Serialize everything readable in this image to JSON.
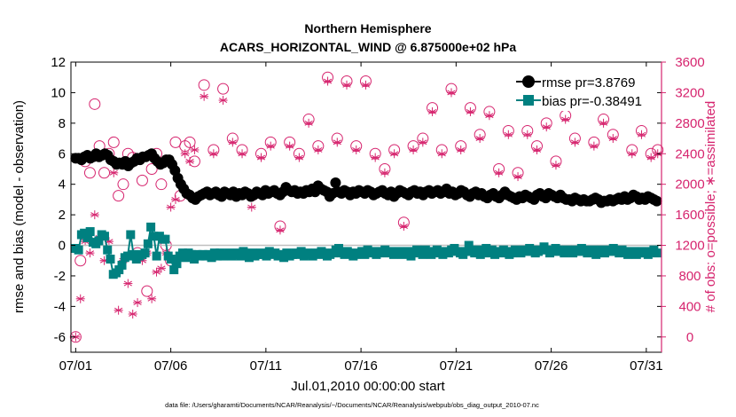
{
  "chart_data": {
    "type": "line",
    "title": "Northern Hemisphere",
    "subtitle": "ACARS_HORIZONTAL_WIND @ 6.875000e+02 hPa",
    "xlabel": "Jul.01,2010 00:00:00 start",
    "ylabel_left": "rmse and bias (model - observation)",
    "ylabel_right": "# of obs: o=possible; ∗=assimilated",
    "footnote": "data file: /Users/gharamti/Documents/NCAR/Reanalysis/~/Documents/NCAR/Reanalysis/webpub/obs_diag_output_2010-07.nc",
    "x_ticks": [
      "07/01",
      "07/06",
      "07/11",
      "07/16",
      "07/21",
      "07/26",
      "07/31"
    ],
    "x_tick_days": [
      0,
      5,
      10,
      15,
      20,
      25,
      30
    ],
    "xlim": [
      -0.25,
      30.8
    ],
    "left_ylim": [
      -7,
      12
    ],
    "left_ticks": [
      -6,
      -4,
      -2,
      0,
      2,
      4,
      6,
      8,
      10,
      12
    ],
    "right_ylim": [
      -200,
      3600
    ],
    "right_ticks": [
      0,
      400,
      800,
      1200,
      1600,
      2000,
      2400,
      2800,
      3200,
      3600
    ],
    "grid": false,
    "legend": {
      "placement": "top-right",
      "entries": [
        "rmse pr=3.8769",
        "bias pr=-0.38491"
      ]
    },
    "colors": {
      "rmse": "#000000",
      "bias": "#008080",
      "obs": "#d6246e",
      "zero_line": "#bfbfbf",
      "axis_right": "#d6246e"
    },
    "rmse": [
      5.7,
      5.7,
      5.6,
      5.8,
      5.9,
      5.7,
      5.8,
      6.0,
      5.8,
      5.9,
      6.0,
      5.9,
      5.6,
      5.5,
      5.3,
      5.4,
      5.3,
      5.5,
      5.2,
      5.4,
      5.5,
      5.7,
      5.6,
      5.8,
      5.8,
      5.9,
      6.0,
      5.7,
      5.5,
      5.3,
      5.4,
      5.6,
      5.6,
      5.3,
      4.9,
      4.4,
      4.0,
      3.7,
      3.4,
      3.3,
      3.1,
      3.0,
      3.2,
      3.3,
      3.4,
      3.5,
      3.3,
      3.4,
      3.5,
      3.3,
      3.2,
      3.5,
      3.4,
      3.3,
      3.5,
      3.2,
      3.4,
      3.3,
      3.5,
      3.4,
      3.2,
      3.3,
      3.5,
      3.4,
      3.3,
      3.6,
      3.4,
      3.5,
      3.6,
      3.4,
      3.3,
      3.5,
      3.8,
      3.6,
      3.5,
      3.6,
      3.4,
      3.5,
      3.4,
      3.6,
      3.5,
      3.7,
      3.5,
      3.9,
      3.7,
      3.6,
      3.5,
      3.2,
      3.4,
      4.1,
      3.5,
      3.4,
      3.6,
      3.5,
      3.3,
      3.5,
      3.4,
      3.6,
      3.5,
      3.4,
      3.6,
      3.5,
      3.3,
      3.4,
      3.5,
      3.6,
      3.4,
      3.3,
      3.5,
      3.2,
      3.4,
      3.6,
      3.5,
      3.4,
      3.3,
      3.5,
      3.6,
      3.4,
      3.5,
      3.3,
      3.5,
      3.6,
      3.4,
      3.5,
      3.6,
      3.4,
      3.5,
      3.7,
      3.4,
      3.5,
      3.3,
      3.4,
      3.6,
      3.5,
      3.3,
      3.2,
      3.4,
      3.5,
      3.3,
      3.4,
      3.2,
      3.1,
      3.3,
      3.4,
      3.2,
      3.1,
      3.3,
      3.5,
      3.3,
      3.2,
      3.1,
      3.0,
      3.2,
      3.1,
      3.3,
      3.2,
      3.1,
      3.0,
      3.3,
      3.4,
      3.2,
      3.1,
      3.4,
      3.3,
      3.2,
      3.1,
      3.3,
      3.1,
      3.0,
      3.0,
      2.9,
      3.1,
      3.0,
      2.9,
      3.0,
      2.9,
      2.9,
      3.0,
      3.1,
      3.0,
      2.8,
      2.9,
      2.9,
      3.0,
      2.9,
      3.0,
      3.1,
      3.0,
      3.2,
      3.0,
      3.1,
      3.3,
      3.2,
      3.0,
      3.1,
      3.0,
      3.2,
      3.1,
      3.0,
      2.9
    ],
    "bias": [
      -0.2,
      -0.3,
      0.7,
      0.8,
      0.5,
      0.9,
      0.2,
      0.1,
      0.3,
      0.7,
      0.6,
      -0.3,
      -0.9,
      -1.9,
      -1.8,
      -1.6,
      -1.3,
      -0.8,
      -0.7,
      0.7,
      -0.6,
      -0.9,
      -0.7,
      -0.6,
      -0.5,
      0.1,
      1.2,
      0.6,
      -0.7,
      0.6,
      0.4,
      0.4,
      -0.7,
      -0.9,
      -1.6,
      -1.2,
      -0.7,
      -0.5,
      -0.8,
      -0.5,
      -0.6,
      -0.9,
      -0.6,
      -0.7,
      -0.6,
      -0.7,
      -0.6,
      -0.8,
      -0.5,
      -0.7,
      -0.5,
      -0.7,
      -0.6,
      -0.5,
      -0.7,
      -0.6,
      -0.5,
      -0.7,
      -0.4,
      -0.6,
      -0.8,
      -0.5,
      -0.7,
      -0.6,
      -0.5,
      -0.6,
      -0.7,
      -0.4,
      -0.6,
      -0.5,
      -0.7,
      -0.6,
      -0.8,
      -0.5,
      -0.7,
      -0.6,
      -0.5,
      -0.6,
      -0.4,
      -0.7,
      -0.5,
      -0.6,
      -0.7,
      -0.5,
      -0.6,
      -0.4,
      -0.5,
      -0.7,
      -0.6,
      -0.5,
      -0.3,
      -0.2,
      -0.5,
      -0.6,
      -0.4,
      -0.5,
      -0.7,
      -0.6,
      -0.5,
      -0.4,
      -0.6,
      -0.3,
      -0.5,
      -0.4,
      -0.6,
      -0.5,
      -0.4,
      -0.3,
      -0.5,
      -0.4,
      -0.6,
      -0.5,
      -0.4,
      -0.6,
      -0.5,
      -0.4,
      -0.7,
      -0.5,
      -0.3,
      -0.4,
      -0.6,
      -0.3,
      -0.5,
      -0.6,
      -0.4,
      -0.3,
      -0.5,
      -0.6,
      -0.4,
      -0.5,
      -0.3,
      -0.2,
      -0.4,
      -0.5,
      -0.6,
      -0.4,
      0.0,
      -0.4,
      -0.5,
      -0.3,
      -0.6,
      -0.4,
      -0.2,
      -0.5,
      -0.3,
      -0.6,
      -0.4,
      -0.5,
      -0.3,
      -0.4,
      -0.6,
      -0.5,
      -0.3,
      -0.4,
      -0.5,
      -0.3,
      -0.4,
      -0.2,
      -0.3,
      -0.5,
      -0.4,
      -0.3,
      -0.1,
      -0.3,
      -0.5,
      -0.4,
      -0.2,
      -0.3,
      -0.4,
      -0.5,
      -0.3,
      -0.4,
      -0.5,
      -0.3,
      -0.4,
      -0.2,
      -0.3,
      -0.5,
      -0.4,
      -0.3,
      -0.6,
      -0.4,
      -0.3,
      -0.5,
      -0.4,
      -0.3,
      -0.2,
      -0.4,
      -0.5,
      -0.3,
      -0.4,
      -0.6,
      -0.5,
      -0.4,
      -0.6,
      -0.5,
      -0.4,
      -0.5,
      -0.6,
      -0.4,
      -0.3,
      -0.5
    ],
    "obs": [
      {
        "day": 0.0,
        "possible": 0,
        "assimilated": 0
      },
      {
        "day": 0.25,
        "possible": 1000,
        "assimilated": 500
      },
      {
        "day": 0.5,
        "possible": 2300,
        "assimilated": 1250
      },
      {
        "day": 0.75,
        "possible": 2150,
        "assimilated": 1100
      },
      {
        "day": 1.0,
        "possible": 3050,
        "assimilated": 1600
      },
      {
        "day": 1.25,
        "possible": 2500,
        "assimilated": 1300
      },
      {
        "day": 1.5,
        "possible": 2150,
        "assimilated": 1000
      },
      {
        "day": 1.75,
        "possible": 2400,
        "assimilated": 1250
      },
      {
        "day": 2.0,
        "possible": 2550,
        "assimilated": 2150
      },
      {
        "day": 2.25,
        "possible": 1850,
        "assimilated": 350
      },
      {
        "day": 2.5,
        "possible": 2000,
        "assimilated": 1000
      },
      {
        "day": 2.75,
        "possible": 2400,
        "assimilated": 700
      },
      {
        "day": 3.0,
        "possible": 2350,
        "assimilated": 300
      },
      {
        "day": 3.25,
        "possible": 1100,
        "assimilated": 450
      },
      {
        "day": 3.5,
        "possible": 2050,
        "assimilated": 1000
      },
      {
        "day": 3.75,
        "possible": 600,
        "assimilated": 1100
      },
      {
        "day": 4.0,
        "possible": 2200,
        "assimilated": 500
      },
      {
        "day": 4.25,
        "possible": 2400,
        "assimilated": 850
      },
      {
        "day": 4.5,
        "possible": 2000,
        "assimilated": 900
      },
      {
        "day": 4.75,
        "possible": 1200,
        "assimilated": 1100
      },
      {
        "day": 5.0,
        "possible": 1000,
        "assimilated": 1700
      },
      {
        "day": 5.25,
        "possible": 2550,
        "assimilated": 1800
      },
      {
        "day": 5.5,
        "possible": 1850,
        "assimilated": 2000
      },
      {
        "day": 5.75,
        "possible": 2500,
        "assimilated": 2400
      },
      {
        "day": 6.0,
        "possible": 2550,
        "assimilated": 2300
      },
      {
        "day": 6.25,
        "possible": 2300,
        "assimilated": 2450
      },
      {
        "day": 6.75,
        "possible": 3300,
        "assimilated": 3150
      },
      {
        "day": 7.25,
        "possible": 2450,
        "assimilated": 2400
      },
      {
        "day": 7.75,
        "possible": 3250,
        "assimilated": 3100
      },
      {
        "day": 8.25,
        "possible": 2600,
        "assimilated": 2550
      },
      {
        "day": 8.75,
        "possible": 2450,
        "assimilated": 2400
      },
      {
        "day": 9.25,
        "possible": 1850,
        "assimilated": 1700
      },
      {
        "day": 9.75,
        "possible": 2400,
        "assimilated": 2350
      },
      {
        "day": 10.25,
        "possible": 2550,
        "assimilated": 2500
      },
      {
        "day": 10.75,
        "possible": 1450,
        "assimilated": 1400
      },
      {
        "day": 11.25,
        "possible": 2550,
        "assimilated": 2500
      },
      {
        "day": 11.75,
        "possible": 2400,
        "assimilated": 2350
      },
      {
        "day": 12.25,
        "possible": 2850,
        "assimilated": 2800
      },
      {
        "day": 12.75,
        "possible": 2500,
        "assimilated": 2450
      },
      {
        "day": 13.25,
        "possible": 3400,
        "assimilated": 3350
      },
      {
        "day": 13.75,
        "possible": 2600,
        "assimilated": 2550
      },
      {
        "day": 14.25,
        "possible": 3350,
        "assimilated": 3300
      },
      {
        "day": 14.75,
        "possible": 2500,
        "assimilated": 2450
      },
      {
        "day": 15.25,
        "possible": 3350,
        "assimilated": 3300
      },
      {
        "day": 15.75,
        "possible": 2400,
        "assimilated": 2350
      },
      {
        "day": 16.25,
        "possible": 2200,
        "assimilated": 2150
      },
      {
        "day": 16.75,
        "possible": 2450,
        "assimilated": 2400
      },
      {
        "day": 17.25,
        "possible": 1500,
        "assimilated": 1450
      },
      {
        "day": 17.75,
        "possible": 2500,
        "assimilated": 2450
      },
      {
        "day": 18.25,
        "possible": 2600,
        "assimilated": 2550
      },
      {
        "day": 18.75,
        "possible": 3000,
        "assimilated": 2950
      },
      {
        "day": 19.25,
        "possible": 2450,
        "assimilated": 2400
      },
      {
        "day": 19.75,
        "possible": 3250,
        "assimilated": 3200
      },
      {
        "day": 20.25,
        "possible": 2500,
        "assimilated": 2450
      },
      {
        "day": 20.75,
        "possible": 3000,
        "assimilated": 2950
      },
      {
        "day": 21.25,
        "possible": 2650,
        "assimilated": 2600
      },
      {
        "day": 21.75,
        "possible": 2950,
        "assimilated": 2900
      },
      {
        "day": 22.25,
        "possible": 2200,
        "assimilated": 2150
      },
      {
        "day": 22.75,
        "possible": 2700,
        "assimilated": 2650
      },
      {
        "day": 23.25,
        "possible": 2150,
        "assimilated": 2100
      },
      {
        "day": 23.75,
        "possible": 2700,
        "assimilated": 2650
      },
      {
        "day": 24.25,
        "possible": 2500,
        "assimilated": 2450
      },
      {
        "day": 24.75,
        "possible": 2800,
        "assimilated": 2750
      },
      {
        "day": 25.25,
        "possible": 2300,
        "assimilated": 2250
      },
      {
        "day": 25.75,
        "possible": 2900,
        "assimilated": 2850
      },
      {
        "day": 26.25,
        "possible": 2600,
        "assimilated": 2550
      },
      {
        "day": 26.75,
        "possible": 3150,
        "assimilated": 3100
      },
      {
        "day": 27.25,
        "possible": 2550,
        "assimilated": 2500
      },
      {
        "day": 27.75,
        "possible": 2850,
        "assimilated": 2800
      },
      {
        "day": 28.25,
        "possible": 2650,
        "assimilated": 2600
      },
      {
        "day": 28.75,
        "possible": 3200,
        "assimilated": 3150
      },
      {
        "day": 29.25,
        "possible": 2450,
        "assimilated": 2400
      },
      {
        "day": 29.75,
        "possible": 2700,
        "assimilated": 2650
      },
      {
        "day": 30.25,
        "possible": 2400,
        "assimilated": 2350
      },
      {
        "day": 30.6,
        "possible": 2450,
        "assimilated": 2400
      }
    ]
  }
}
